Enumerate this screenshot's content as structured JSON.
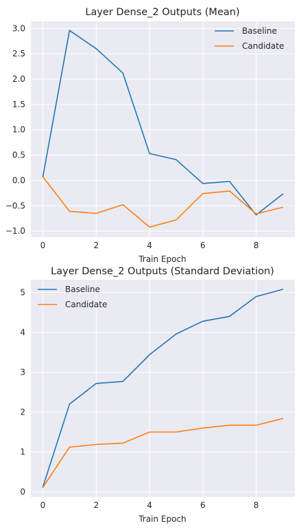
{
  "chart_data": [
    {
      "type": "line",
      "title": "Layer Dense_2 Outputs (Mean)",
      "xlabel": "Train Epoch",
      "ylabel": "",
      "x": [
        0,
        1,
        2,
        3,
        4,
        5,
        6,
        7,
        8,
        9
      ],
      "xticks": [
        0,
        2,
        4,
        6,
        8
      ],
      "yticks": [
        -1.0,
        -0.5,
        0.0,
        0.5,
        1.0,
        1.5,
        2.0,
        2.5,
        3.0
      ],
      "ytick_labels": [
        "−1.0",
        "−0.5",
        "0.0",
        "0.5",
        "1.0",
        "1.5",
        "2.0",
        "2.5",
        "3.0"
      ],
      "xlim": [
        -0.45,
        9.45
      ],
      "ylim": [
        -1.12,
        3.14
      ],
      "grid": true,
      "legend": "top-right",
      "series": [
        {
          "name": "Baseline",
          "color": "#1f77b4",
          "values": [
            0.07,
            2.96,
            2.6,
            2.12,
            0.53,
            0.41,
            -0.06,
            -0.02,
            -0.68,
            -0.27
          ]
        },
        {
          "name": "Candidate",
          "color": "#ff7f0e",
          "values": [
            0.07,
            -0.61,
            -0.65,
            -0.48,
            -0.92,
            -0.78,
            -0.26,
            -0.21,
            -0.66,
            -0.53
          ]
        }
      ]
    },
    {
      "type": "line",
      "title": "Layer Dense_2 Outputs (Standard Deviation)",
      "xlabel": "Train Epoch",
      "ylabel": "",
      "x": [
        0,
        1,
        2,
        3,
        4,
        5,
        6,
        7,
        8,
        9
      ],
      "xticks": [
        0,
        2,
        4,
        6,
        8
      ],
      "yticks": [
        0,
        1,
        2,
        3,
        4,
        5
      ],
      "ytick_labels": [
        "0",
        "1",
        "2",
        "3",
        "4",
        "5"
      ],
      "xlim": [
        -0.45,
        9.45
      ],
      "ylim": [
        -0.13,
        5.32
      ],
      "grid": true,
      "legend": "top-left",
      "series": [
        {
          "name": "Baseline",
          "color": "#1f77b4",
          "values": [
            0.12,
            2.2,
            2.72,
            2.77,
            3.44,
            3.96,
            4.28,
            4.4,
            4.9,
            5.08
          ]
        },
        {
          "name": "Candidate",
          "color": "#ff7f0e",
          "values": [
            0.11,
            1.12,
            1.19,
            1.22,
            1.5,
            1.5,
            1.6,
            1.67,
            1.67,
            1.84
          ]
        }
      ]
    }
  ]
}
